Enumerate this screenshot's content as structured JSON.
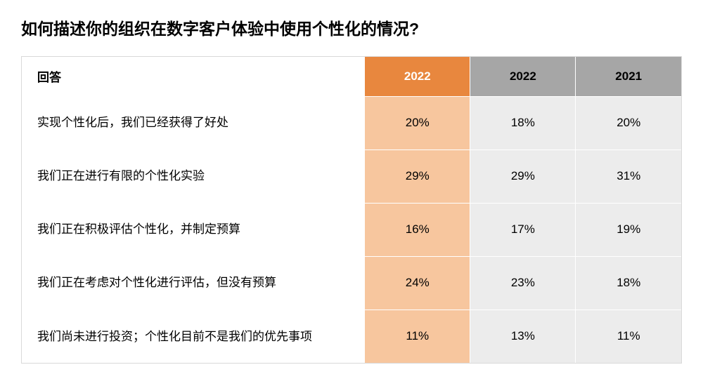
{
  "title": "如何描述你的组织在数字客户体验中使用个性化的情况?",
  "table": {
    "answer_header": "回答",
    "years": [
      "2022",
      "2022",
      "2021"
    ],
    "rows": [
      {
        "label": "实现个性化后，我们已经获得了好处",
        "values": [
          "20%",
          "18%",
          "20%"
        ]
      },
      {
        "label": "我们正在进行有限的个性化实验",
        "values": [
          "29%",
          "29%",
          "31%"
        ]
      },
      {
        "label": "我们正在积极评估个性化，并制定预算",
        "values": [
          "16%",
          "17%",
          "19%"
        ]
      },
      {
        "label": "我们正在考虑对个性化进行评估，但没有预算",
        "values": [
          "24%",
          "23%",
          "18%"
        ]
      },
      {
        "label": "我们尚未进行投资；个性化目前不是我们的优先事项",
        "values": [
          "11%",
          "13%",
          "11%"
        ]
      }
    ],
    "colors": {
      "year_header_bg": [
        "#e8873e",
        "#a6a6a6",
        "#a6a6a6"
      ],
      "value_cell_bg": [
        "#f7c69e",
        "#ececec",
        "#ececec"
      ],
      "border": "#d9d9d9",
      "title_text": "#000000",
      "body_text": "#000000"
    },
    "fontsize": {
      "title": 23,
      "header": 17,
      "cell": 17
    }
  }
}
